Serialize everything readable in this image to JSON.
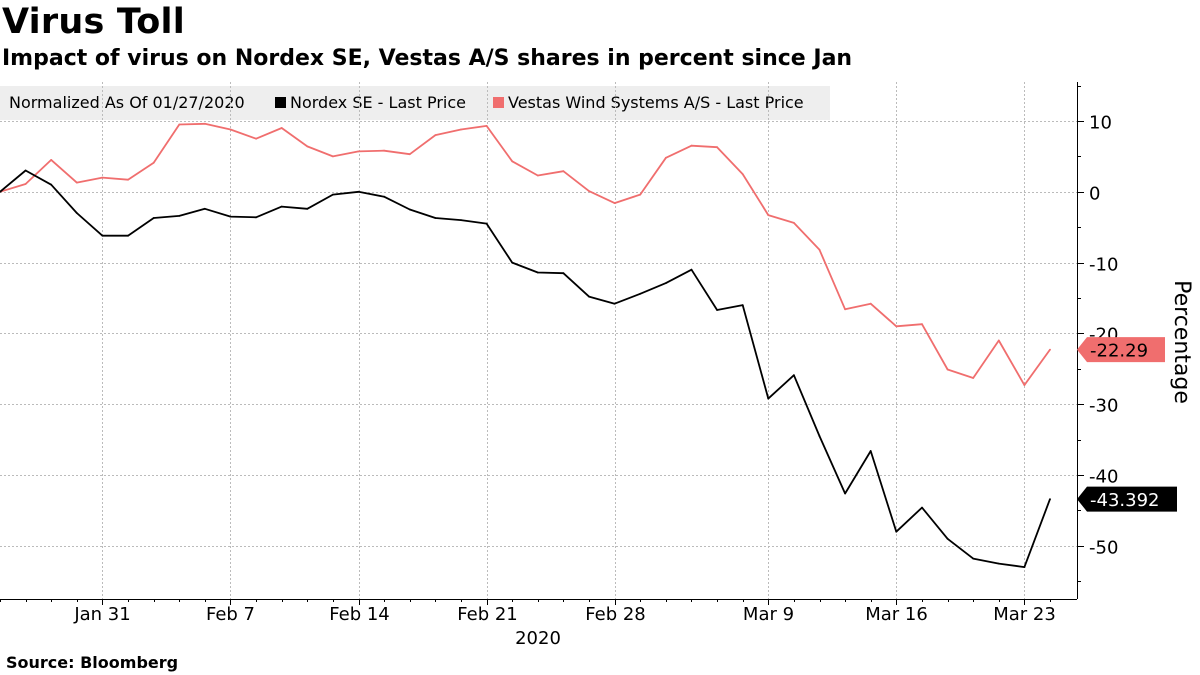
{
  "header": {
    "title": "Virus Toll",
    "subtitle": "Impact of virus on Nordex SE, Vestas A/S shares in percent since Jan"
  },
  "legend": {
    "normalized_label": "Normalized As Of 01/27/2020",
    "items": [
      {
        "label": "Nordex SE - Last Price",
        "color": "#000000"
      },
      {
        "label": "Vestas Wind Systems A/S - Last Price",
        "color": "#f06e6e"
      }
    ]
  },
  "source": "Source: Bloomberg",
  "chart_data": {
    "type": "line",
    "title": "Virus Toll",
    "subtitle": "Impact of virus on Nordex SE, Vestas A/S shares in percent since Jan",
    "xlabel": "2020",
    "ylabel": "Percentage",
    "ylim": [
      -57.5,
      15.5
    ],
    "yticks": [
      10,
      0,
      -10,
      -20,
      -30,
      -40,
      -50
    ],
    "grid": true,
    "legend_position": "top-left",
    "x": [
      "Jan 27",
      "Jan 28",
      "Jan 29",
      "Jan 30",
      "Jan 31",
      "Feb 3",
      "Feb 4",
      "Feb 5",
      "Feb 6",
      "Feb 7",
      "Feb 10",
      "Feb 11",
      "Feb 12",
      "Feb 13",
      "Feb 14",
      "Feb 17",
      "Feb 18",
      "Feb 19",
      "Feb 20",
      "Feb 21",
      "Feb 24",
      "Feb 25",
      "Feb 26",
      "Feb 27",
      "Feb 28",
      "Mar 2",
      "Mar 3",
      "Mar 4",
      "Mar 5",
      "Mar 6",
      "Mar 9",
      "Mar 10",
      "Mar 11",
      "Mar 12",
      "Mar 13",
      "Mar 16",
      "Mar 17",
      "Mar 18",
      "Mar 19",
      "Mar 20",
      "Mar 23",
      "Mar 24"
    ],
    "x_ticks": [
      {
        "label": "Jan 31",
        "index": 4
      },
      {
        "label": "Feb 7",
        "index": 9
      },
      {
        "label": "Feb 14",
        "index": 14
      },
      {
        "label": "Feb 21",
        "index": 19
      },
      {
        "label": "Feb 28",
        "index": 24
      },
      {
        "label": "Mar 9",
        "index": 30
      },
      {
        "label": "Mar 16",
        "index": 35
      },
      {
        "label": "Mar 23",
        "index": 40
      }
    ],
    "series": [
      {
        "name": "Nordex SE - Last Price",
        "color": "#000000",
        "last_value_label": "-43.392",
        "values": [
          0,
          3,
          1,
          -3,
          -6.2,
          -6.2,
          -3.7,
          -3.4,
          -2.4,
          -3.5,
          -3.6,
          -2.1,
          -2.4,
          -0.4,
          0,
          -0.7,
          -2.5,
          -3.7,
          -4.0,
          -4.5,
          -10.0,
          -11.4,
          -11.5,
          -14.8,
          -15.8,
          -14.4,
          -12.9,
          -11.0,
          -16.7,
          -16.0,
          -29.2,
          -25.9,
          -34.5,
          -42.6,
          -36.6,
          -48.0,
          -44.6,
          -49.0,
          -51.8,
          -52.5,
          -53.0,
          -43.392
        ]
      },
      {
        "name": "Vestas Wind Systems A/S - Last Price",
        "color": "#f06e6e",
        "last_value_label": "-22.29",
        "values": [
          0,
          1.1,
          4.5,
          1.3,
          2.0,
          1.7,
          4.1,
          9.5,
          9.6,
          8.8,
          7.5,
          9.0,
          6.4,
          5.0,
          5.7,
          5.8,
          5.3,
          8.0,
          8.8,
          9.3,
          4.3,
          2.3,
          2.9,
          0.1,
          -1.6,
          -0.4,
          4.8,
          6.5,
          6.3,
          2.5,
          -3.3,
          -4.4,
          -8.2,
          -16.6,
          -15.8,
          -19.0,
          -18.7,
          -25.1,
          -26.3,
          -21.0,
          -27.3,
          -22.29
        ]
      }
    ]
  }
}
